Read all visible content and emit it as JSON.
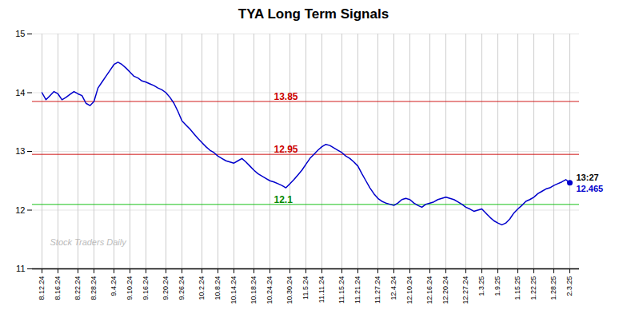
{
  "chart_data": {
    "type": "line",
    "title": "TYA Long Term Signals",
    "categories": [
      "8.12.24",
      null,
      null,
      null,
      "8.16.24",
      null,
      null,
      null,
      null,
      "8.22.24",
      null,
      null,
      null,
      "8.28.24",
      null,
      null,
      null,
      null,
      "9.4.24",
      null,
      null,
      null,
      "9.10.24",
      null,
      null,
      null,
      "9.16.24",
      null,
      null,
      null,
      null,
      "9.20.24",
      null,
      null,
      null,
      "9.26.24",
      null,
      null,
      null,
      null,
      "10.2.24",
      null,
      null,
      null,
      "10.8.24",
      null,
      null,
      null,
      "10.14.24",
      null,
      null,
      null,
      null,
      "10.18.24",
      null,
      null,
      null,
      "10.24.24",
      null,
      null,
      null,
      null,
      "10.30.24",
      null,
      null,
      null,
      "11.5.24",
      null,
      null,
      null,
      "11.11.24",
      null,
      null,
      null,
      null,
      "11.15.24",
      null,
      null,
      null,
      "11.21.24",
      null,
      null,
      null,
      null,
      "11.27.24",
      null,
      null,
      null,
      "12.4.24",
      null,
      null,
      null,
      "12.10.24",
      null,
      null,
      null,
      null,
      "12.16.24",
      null,
      null,
      null,
      "12.20.24",
      null,
      null,
      null,
      null,
      "12.27.24",
      null,
      null,
      null,
      "1.3.25",
      null,
      null,
      null,
      "1.9.25",
      null,
      null,
      null,
      null,
      "1.15.25",
      null,
      null,
      null,
      "1.22.25",
      null,
      null,
      null,
      null,
      "1.28.25",
      null,
      null,
      null,
      "2.3.25"
    ],
    "values": [
      14.0,
      13.88,
      13.95,
      14.02,
      13.98,
      13.88,
      13.92,
      13.97,
      14.02,
      13.98,
      13.95,
      13.82,
      13.78,
      13.85,
      14.08,
      14.18,
      14.28,
      14.38,
      14.48,
      14.52,
      14.48,
      14.42,
      14.35,
      14.28,
      14.25,
      14.2,
      14.18,
      14.15,
      14.12,
      14.08,
      14.05,
      14.0,
      13.92,
      13.82,
      13.68,
      13.52,
      13.45,
      13.38,
      13.3,
      13.22,
      13.15,
      13.08,
      13.02,
      12.98,
      12.92,
      12.88,
      12.84,
      12.82,
      12.8,
      12.84,
      12.88,
      12.82,
      12.75,
      12.68,
      12.62,
      12.58,
      12.54,
      12.5,
      12.48,
      12.45,
      12.42,
      12.38,
      12.45,
      12.52,
      12.6,
      12.68,
      12.78,
      12.88,
      12.95,
      13.02,
      13.08,
      13.12,
      13.1,
      13.06,
      13.02,
      12.98,
      12.92,
      12.88,
      12.82,
      12.75,
      12.62,
      12.5,
      12.38,
      12.28,
      12.2,
      12.15,
      12.12,
      12.1,
      12.08,
      12.12,
      12.18,
      12.2,
      12.18,
      12.12,
      12.08,
      12.05,
      12.1,
      12.12,
      12.14,
      12.18,
      12.2,
      12.22,
      12.2,
      12.18,
      12.14,
      12.1,
      12.05,
      12.02,
      11.98,
      12.0,
      12.02,
      11.95,
      11.88,
      11.82,
      11.78,
      11.75,
      11.78,
      11.85,
      11.95,
      12.02,
      12.08,
      12.15,
      12.18,
      12.22,
      12.28,
      12.32,
      12.36,
      12.38,
      12.42,
      12.45,
      12.48,
      12.52,
      12.465
    ],
    "color": "#0000cc",
    "ylim": [
      11,
      15
    ],
    "yticks": [
      11,
      12,
      13,
      14,
      15
    ],
    "grid": true,
    "hlines": [
      {
        "y": 13.85,
        "color": "#cc0000"
      },
      {
        "y": 12.95,
        "color": "#cc0000"
      },
      {
        "y": 12.1,
        "color": "#00bb00"
      }
    ],
    "annotations": [
      {
        "text": "13.85",
        "y": 13.85,
        "color": "#cc0000"
      },
      {
        "text": "12.95",
        "y": 12.95,
        "color": "#cc0000"
      },
      {
        "text": "12.1",
        "y": 12.1,
        "color": "#008800"
      }
    ],
    "watermark": {
      "text": "Stock Traders Daily",
      "color": "#bbbbbb"
    },
    "last_point": {
      "label": "13:27",
      "value": 12.465
    }
  }
}
